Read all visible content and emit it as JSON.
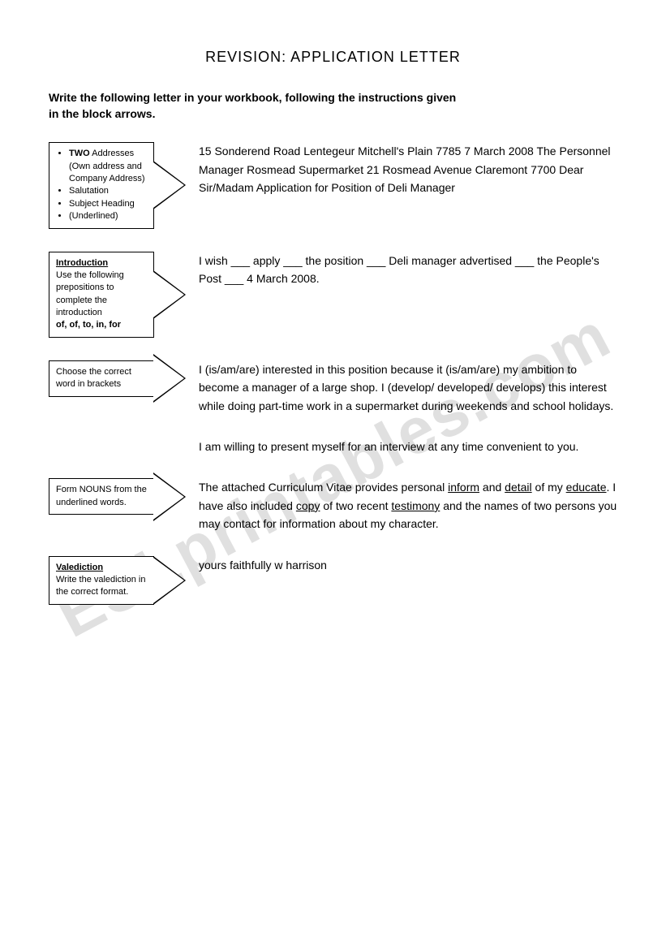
{
  "title": "REVISION:  APPLICATION LETTER",
  "instructions": "Write the following letter in your workbook, following the instructions given\n in the block arrows.",
  "watermark": "ESLprintables.com",
  "sections": [
    {
      "box_type": "list",
      "items": [
        {
          "lead": "TWO",
          "rest": " Addresses (Own address and Company Address)"
        },
        {
          "lead": "",
          "rest": "Salutation"
        },
        {
          "lead": "",
          "rest": "Subject Heading"
        },
        {
          "lead": "",
          "rest": "(Underlined)"
        }
      ],
      "content_html": "15 Sonderend Road Lentegeur Mitchell's Plain 7785 7 March 2008 The Personnel Manager Rosmead Supermarket 21 Rosmead Avenue Claremont 7700 Dear Sir/Madam Application for Position of Deli Manager"
    },
    {
      "box_type": "text",
      "heading": "Introduction",
      "body": "Use the following prepositions to complete the introduction",
      "bold_tail": "of, of, to, in, for",
      "content_html": "I wish ___ apply ___ the position ___ Deli manager advertised ___ the People's Post ___ 4 March 2008."
    },
    {
      "box_type": "text",
      "heading": "",
      "body": "Choose the correct word in brackets",
      "bold_tail": "",
      "content_html": "I (is/am/are) interested in this position because it (is/am/are) my ambition to become a manager of a large shop.  I (develop/ developed/ develops) this interest while doing part-time work in a supermarket during weekends and school holidays."
    }
  ],
  "standalone": "I am willing to present myself for an interview at any time convenient to you.",
  "sections2": [
    {
      "box_type": "text",
      "heading": "",
      "body": "Form NOUNS from the underlined words.",
      "bold_tail": "",
      "content_parts": [
        {
          "t": "The attached Curriculum Vitae provides personal "
        },
        {
          "t": "inform",
          "u": true
        },
        {
          "t": " and "
        },
        {
          "t": "detail",
          "u": true
        },
        {
          "t": " of my "
        },
        {
          "t": "educate",
          "u": true
        },
        {
          "t": ".  I have also included "
        },
        {
          "t": "copy",
          "u": true
        },
        {
          "t": " of two recent "
        },
        {
          "t": "testimony",
          "u": true
        },
        {
          "t": " and the names of two persons you may contact for information about my character."
        }
      ]
    },
    {
      "box_type": "text",
      "heading": "Valediction",
      "body": "Write the valediction in the correct format.",
      "bold_tail": "",
      "content_html": "yours faithfully w harrison"
    }
  ]
}
